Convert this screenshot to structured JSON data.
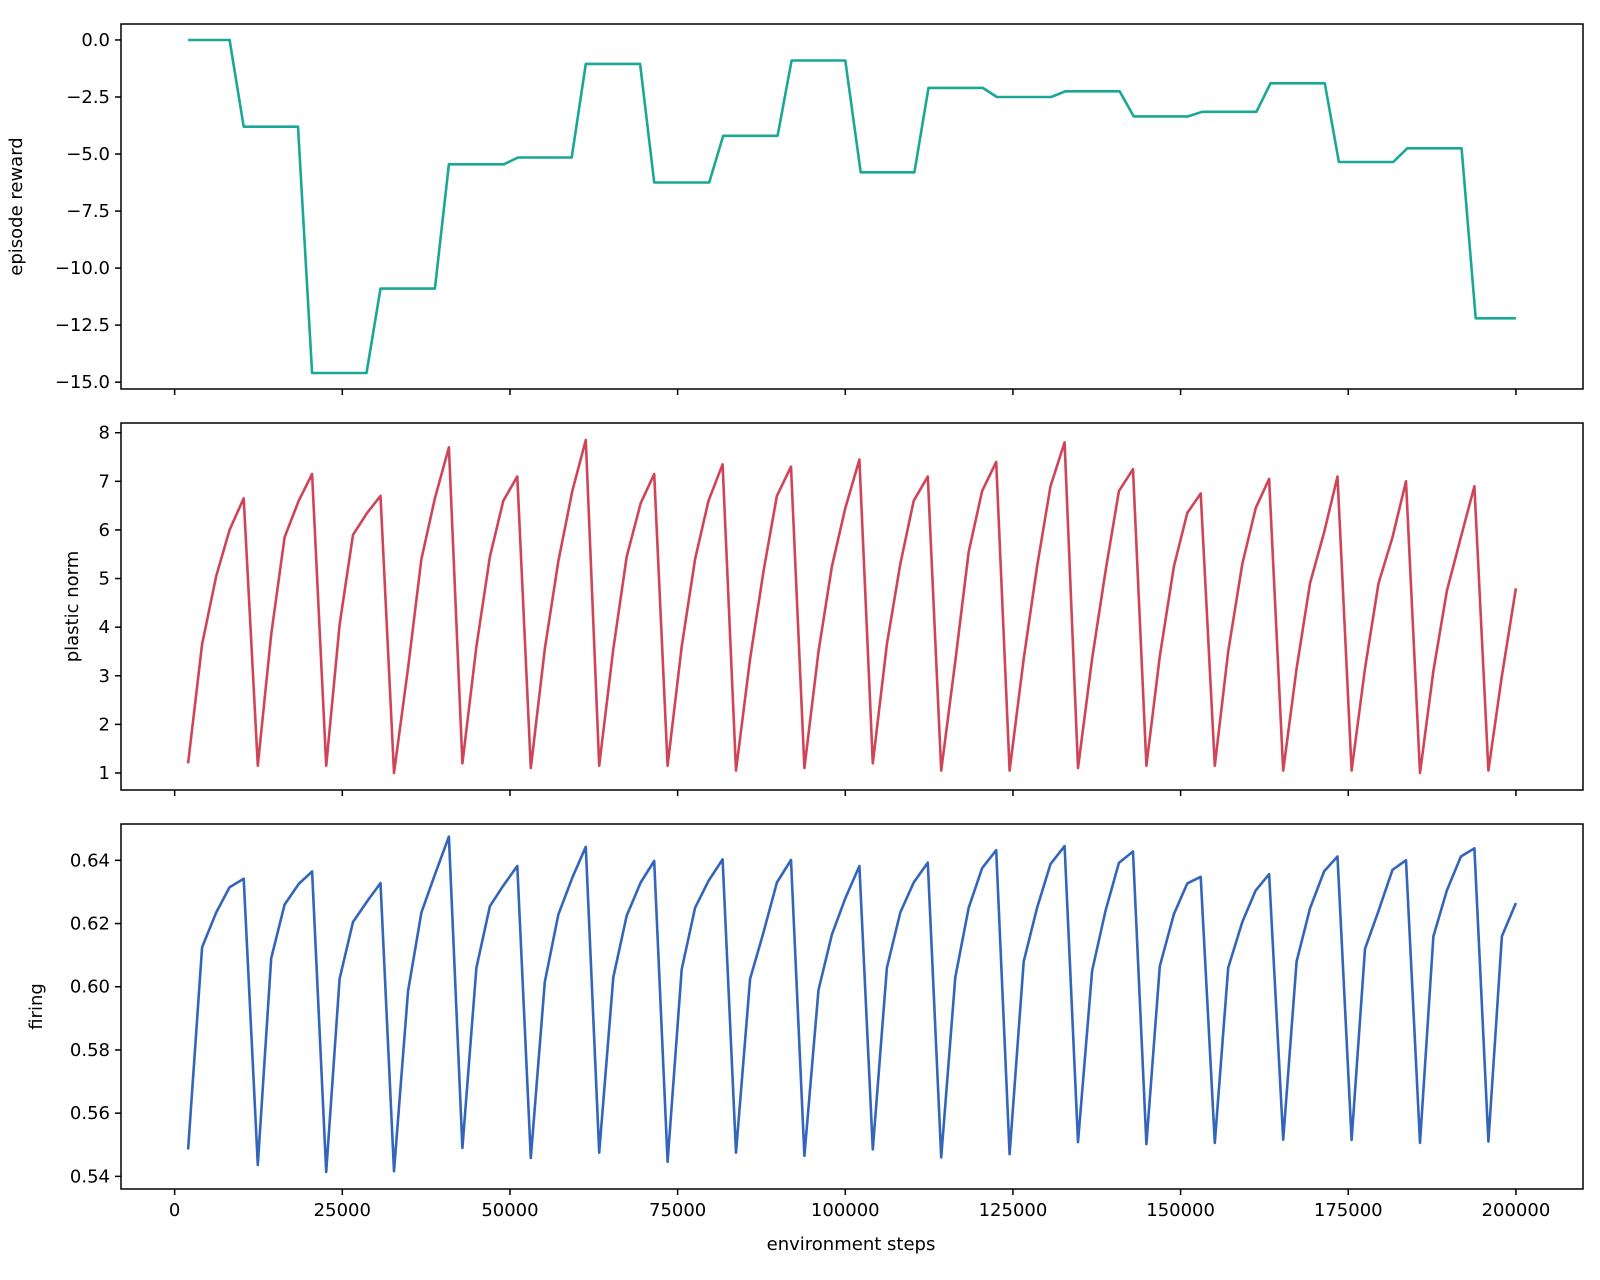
{
  "figure": {
    "xlabel": "environment steps",
    "x_ticks": [
      0,
      25000,
      50000,
      75000,
      100000,
      125000,
      150000,
      175000,
      200000
    ],
    "x_tick_labels": [
      "0",
      "25000",
      "50000",
      "75000",
      "100000",
      "125000",
      "150000",
      "175000",
      "200000"
    ],
    "xlim": [
      -8000,
      210000
    ]
  },
  "chart_data": [
    {
      "type": "line",
      "title": "",
      "xlabel": "",
      "ylabel": "episode reward",
      "ylim": [
        -15.3,
        0.7
      ],
      "y_ticks": [
        0,
        -2.5,
        -5,
        -7.5,
        -10,
        -12.5,
        -15
      ],
      "y_tick_labels": [
        "0.0",
        "−2.5",
        "−5.0",
        "−7.5",
        "−10.0",
        "−12.5",
        "−15.0"
      ],
      "grid": false,
      "legend": "none",
      "color": "#1aa896",
      "x": [
        2000,
        8200,
        10300,
        18400,
        20500,
        28600,
        30700,
        38800,
        40900,
        49100,
        51200,
        59200,
        61300,
        69400,
        71500,
        79700,
        81800,
        89900,
        92000,
        100000,
        102300,
        110300,
        112400,
        120500,
        122600,
        130700,
        132800,
        140900,
        143000,
        151100,
        153200,
        161300,
        163400,
        171500,
        173600,
        181700,
        183800,
        191900,
        194000,
        200000
      ],
      "y": [
        0,
        0,
        -3.8,
        -3.8,
        -14.6,
        -14.6,
        -10.9,
        -10.9,
        -5.45,
        -5.45,
        -5.15,
        -5.15,
        -1.05,
        -1.05,
        -6.25,
        -6.25,
        -4.2,
        -4.2,
        -0.9,
        -0.9,
        -5.8,
        -5.8,
        -2.1,
        -2.1,
        -2.5,
        -2.5,
        -2.25,
        -2.25,
        -3.35,
        -3.35,
        -3.15,
        -3.15,
        -1.9,
        -1.9,
        -5.35,
        -5.35,
        -4.75,
        -4.75,
        -12.2,
        -12.2
      ]
    },
    {
      "type": "line",
      "title": "",
      "xlabel": "",
      "ylabel": "plastic norm",
      "ylim": [
        0.65,
        8.2
      ],
      "y_ticks": [
        1,
        2,
        3,
        4,
        5,
        6,
        7,
        8
      ],
      "y_tick_labels": [
        "1",
        "2",
        "3",
        "4",
        "5",
        "6",
        "7",
        "8"
      ],
      "grid": false,
      "legend": "none",
      "color": "#d04457",
      "x": [
        2000,
        4100,
        6200,
        8200,
        10300,
        12400,
        14400,
        16400,
        18500,
        20500,
        22600,
        24600,
        26600,
        28700,
        30700,
        32700,
        34800,
        36800,
        38800,
        40900,
        42900,
        45000,
        47000,
        49000,
        51100,
        53100,
        55200,
        57200,
        59300,
        61300,
        63300,
        65400,
        67400,
        69500,
        71500,
        73500,
        75600,
        77600,
        79600,
        81700,
        83700,
        85800,
        87800,
        89800,
        91900,
        93900,
        96000,
        98000,
        100000,
        102100,
        104100,
        106200,
        108200,
        110200,
        112300,
        114300,
        116400,
        118400,
        120400,
        122500,
        124500,
        126600,
        128600,
        130600,
        132700,
        134700,
        136800,
        138800,
        140800,
        142900,
        144900,
        146900,
        149000,
        151000,
        153000,
        155100,
        157100,
        159200,
        161200,
        163200,
        165300,
        167300,
        169300,
        171400,
        173400,
        175500,
        177500,
        179500,
        181600,
        183600,
        185700,
        187700,
        189700,
        191800,
        193800,
        195900,
        197900,
        200000
      ],
      "y": [
        1.2,
        3.65,
        5.05,
        6.0,
        6.65,
        1.15,
        3.85,
        5.85,
        6.6,
        7.15,
        1.15,
        4.05,
        5.9,
        6.35,
        6.7,
        1.0,
        3.15,
        5.4,
        6.65,
        7.7,
        1.2,
        3.6,
        5.45,
        6.6,
        7.1,
        1.1,
        3.55,
        5.35,
        6.8,
        7.85,
        1.15,
        3.55,
        5.45,
        6.55,
        7.15,
        1.15,
        3.6,
        5.4,
        6.6,
        7.35,
        1.05,
        3.35,
        5.15,
        6.7,
        7.3,
        1.1,
        3.5,
        5.25,
        6.45,
        7.45,
        1.2,
        3.65,
        5.3,
        6.6,
        7.1,
        1.05,
        3.3,
        5.55,
        6.8,
        7.4,
        1.05,
        3.35,
        5.25,
        6.9,
        7.8,
        1.1,
        3.35,
        5.15,
        6.8,
        7.25,
        1.15,
        3.4,
        5.25,
        6.35,
        6.75,
        1.15,
        3.5,
        5.3,
        6.45,
        7.05,
        1.05,
        3.15,
        4.9,
        5.95,
        7.1,
        1.05,
        3.15,
        4.9,
        5.85,
        7.0,
        1.0,
        3.1,
        4.75,
        5.85,
        6.9,
        1.05,
        3.0,
        4.8
      ]
    },
    {
      "type": "line",
      "title": "",
      "xlabel": "environment steps",
      "ylabel": "firing",
      "ylim": [
        0.536,
        0.6515
      ],
      "y_ticks": [
        0.54,
        0.56,
        0.58,
        0.6,
        0.62,
        0.64
      ],
      "y_tick_labels": [
        "0.54",
        "0.56",
        "0.58",
        "0.60",
        "0.62",
        "0.64"
      ],
      "grid": false,
      "legend": "none",
      "color": "#3366bb",
      "x": [
        2000,
        4100,
        6200,
        8200,
        10300,
        12400,
        14400,
        16400,
        18500,
        20500,
        22600,
        24600,
        26600,
        28700,
        30700,
        32700,
        34800,
        36800,
        38800,
        40900,
        42900,
        45000,
        47000,
        49000,
        51100,
        53100,
        55200,
        57200,
        59300,
        61300,
        63300,
        65400,
        67400,
        69500,
        71500,
        73500,
        75600,
        77600,
        79600,
        81700,
        83700,
        85800,
        87800,
        89800,
        91900,
        93900,
        96000,
        98000,
        100000,
        102100,
        104100,
        106200,
        108200,
        110200,
        112300,
        114300,
        116400,
        118400,
        120400,
        122500,
        124500,
        126600,
        128600,
        130600,
        132700,
        134700,
        136800,
        138800,
        140800,
        142900,
        144900,
        146900,
        149000,
        151000,
        153000,
        155100,
        157100,
        159200,
        161200,
        163200,
        165300,
        167300,
        169300,
        171400,
        173400,
        175500,
        177500,
        179500,
        181600,
        183600,
        185700,
        187700,
        189700,
        191800,
        193800,
        195900,
        197900,
        200000
      ],
      "y": [
        0.5485,
        0.6125,
        0.6235,
        0.6315,
        0.6342,
        0.5436,
        0.609,
        0.626,
        0.6325,
        0.6365,
        0.5414,
        0.6025,
        0.6205,
        0.627,
        0.6328,
        0.5416,
        0.5985,
        0.6235,
        0.6355,
        0.6475,
        0.549,
        0.606,
        0.6255,
        0.632,
        0.6382,
        0.5458,
        0.6015,
        0.6228,
        0.6345,
        0.6443,
        0.5475,
        0.603,
        0.6225,
        0.633,
        0.6398,
        0.5446,
        0.6055,
        0.625,
        0.6335,
        0.6403,
        0.5475,
        0.6025,
        0.6172,
        0.633,
        0.6401,
        0.5465,
        0.599,
        0.6165,
        0.628,
        0.6382,
        0.5485,
        0.606,
        0.6235,
        0.633,
        0.6393,
        0.546,
        0.603,
        0.625,
        0.6375,
        0.6432,
        0.547,
        0.608,
        0.625,
        0.6388,
        0.6445,
        0.5508,
        0.605,
        0.624,
        0.6392,
        0.6428,
        0.5502,
        0.6065,
        0.623,
        0.6327,
        0.6348,
        0.5506,
        0.606,
        0.6205,
        0.6305,
        0.6356,
        0.5516,
        0.608,
        0.6248,
        0.6365,
        0.6412,
        0.5515,
        0.612,
        0.624,
        0.637,
        0.64,
        0.5506,
        0.616,
        0.6305,
        0.6412,
        0.6438,
        0.551,
        0.616,
        0.6265
      ]
    }
  ]
}
